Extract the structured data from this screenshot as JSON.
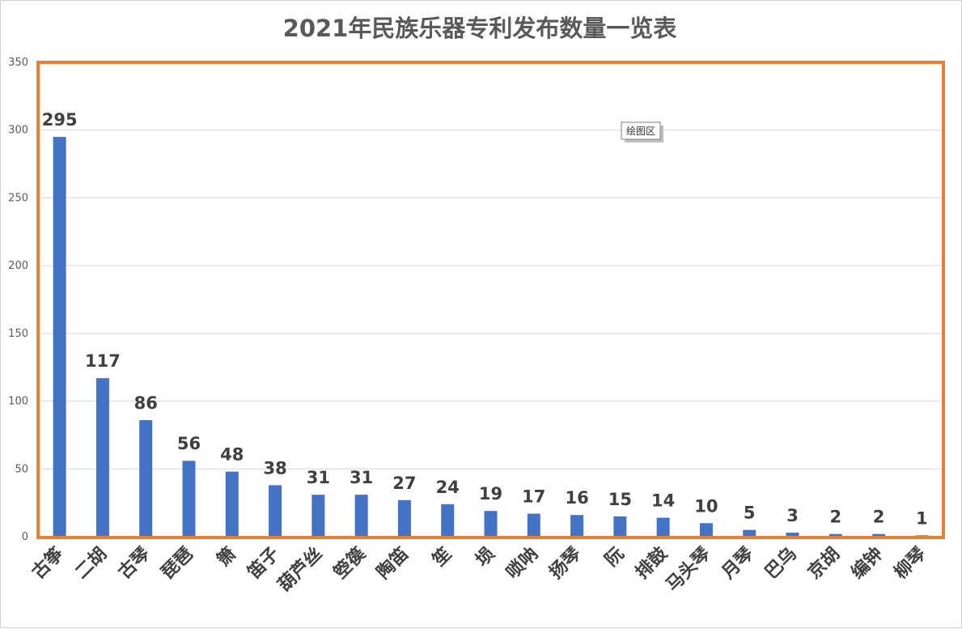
{
  "chart_data": {
    "type": "bar",
    "title": "2021年民族乐器专利发布数量一览表",
    "categories": [
      "古筝",
      "二胡",
      "古琴",
      "琵琶",
      "箫",
      "笛子",
      "葫芦丝",
      "箜篌",
      "陶笛",
      "笙",
      "埙",
      "唢呐",
      "扬琴",
      "阮",
      "排鼓",
      "马头琴",
      "月琴",
      "巴乌",
      "京胡",
      "编钟",
      "柳琴"
    ],
    "values": [
      295,
      117,
      86,
      56,
      48,
      38,
      31,
      31,
      27,
      24,
      19,
      17,
      16,
      15,
      14,
      10,
      5,
      3,
      2,
      2,
      1
    ],
    "yticks": [
      "0",
      "50",
      "100",
      "150",
      "200",
      "250",
      "300",
      "350"
    ],
    "ylim": [
      0,
      350
    ],
    "grid": true,
    "bar_color": "#4472c4",
    "frame_color": "#ed7d31",
    "plot_area_tooltip": "绘图区"
  }
}
